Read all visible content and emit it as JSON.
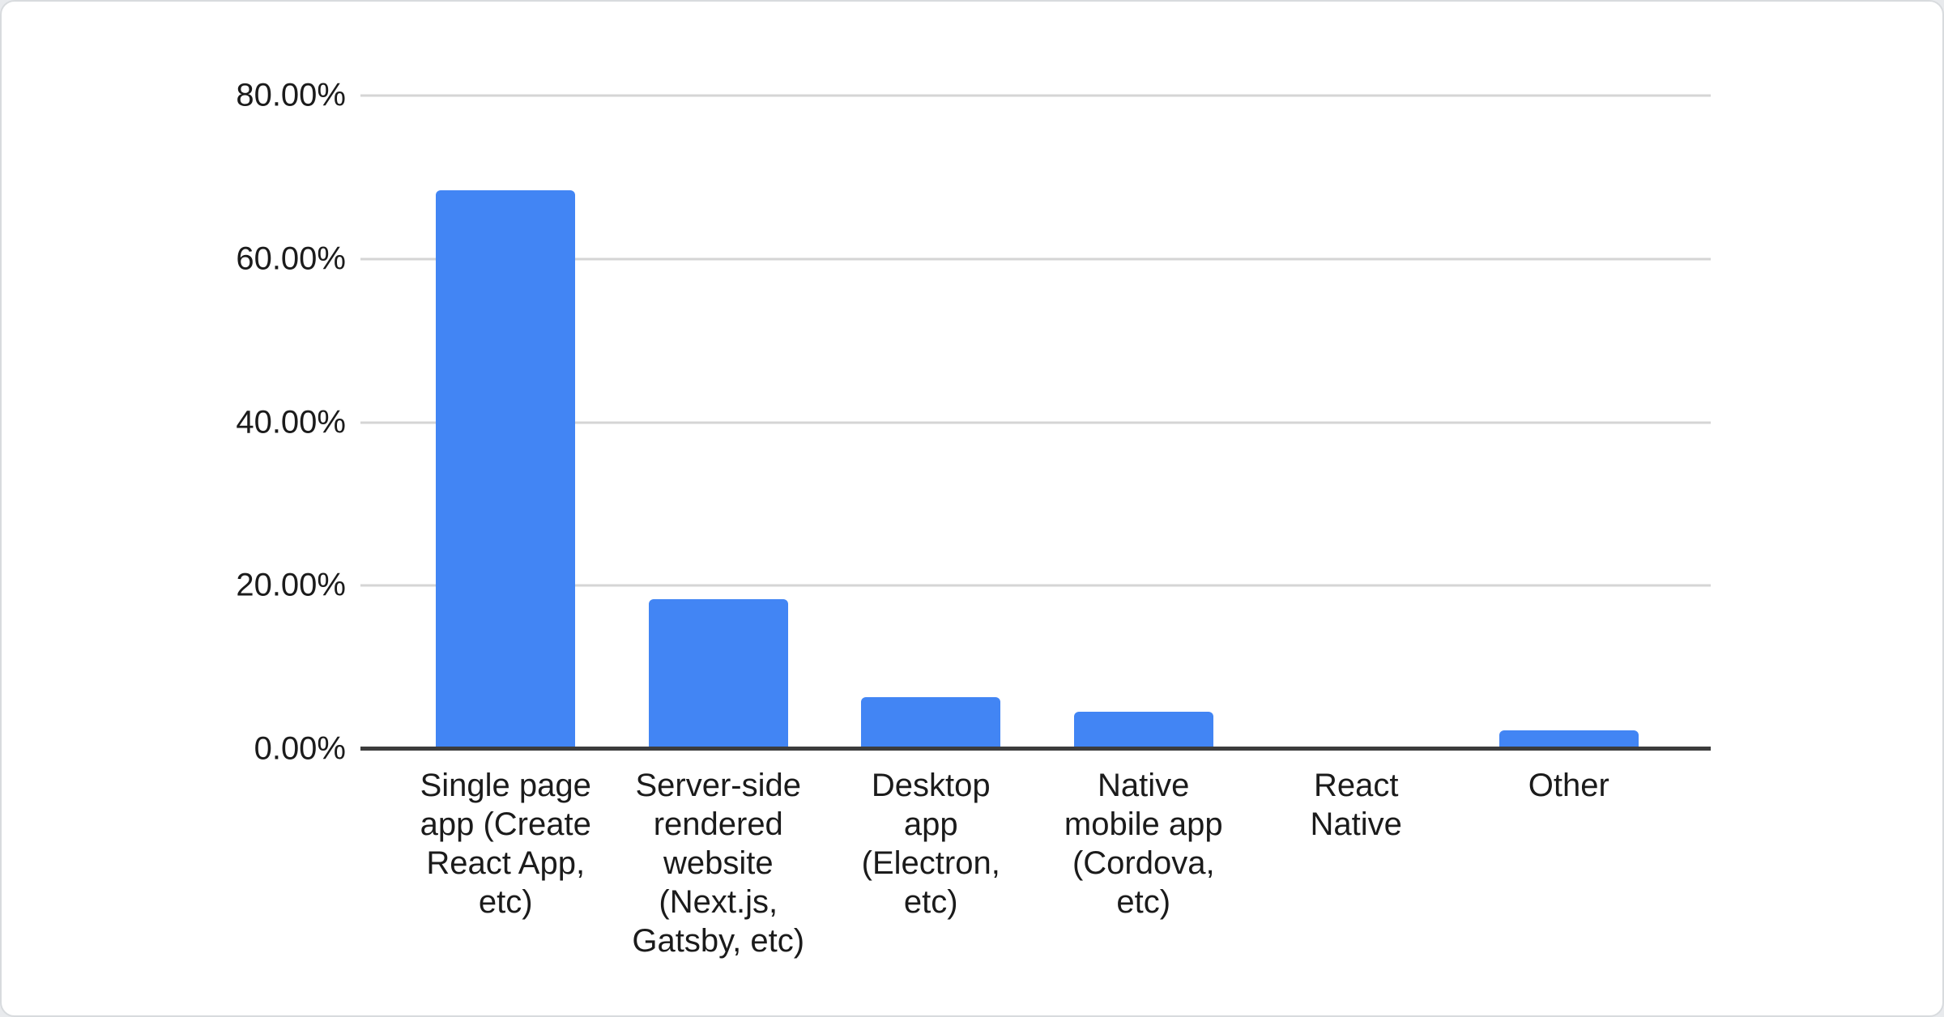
{
  "chart_data": {
    "type": "bar",
    "title": "",
    "xlabel": "",
    "ylabel": "",
    "legend": "none",
    "grid": true,
    "ylim": [
      0,
      80
    ],
    "y_tick_labels": [
      "80.00%",
      "60.00%",
      "40.00%",
      "20.00%",
      "0.00%"
    ],
    "categories": [
      "Single page app (Create React App, etc)",
      "Server-side rendered website (Next.js, Gatsby, etc)",
      "Desktop app (Electron, etc)",
      "Native mobile app (Cordova, etc)",
      "React Native",
      "Other"
    ],
    "category_lines": [
      [
        "Single page",
        "app (Create",
        "React App,",
        "etc)"
      ],
      [
        "Server-side",
        "rendered",
        "website",
        "(Next.js,",
        "Gatsby, etc)"
      ],
      [
        "Desktop",
        "app",
        "(Electron,",
        "etc)"
      ],
      [
        "Native",
        "mobile app",
        "(Cordova,",
        "etc)"
      ],
      [
        "React",
        "Native"
      ],
      [
        "Other"
      ]
    ],
    "values": [
      68.4,
      18.3,
      6.3,
      4.6,
      0.0,
      2.3
    ],
    "bar_color": "#4285F4",
    "gridline_color": "#d5d5d5",
    "axis_line_color": "#3c3c3c",
    "label_color": "#1b1b1b"
  }
}
